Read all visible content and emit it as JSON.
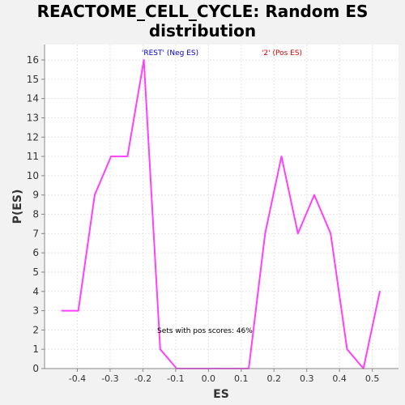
{
  "chart_data": {
    "type": "line",
    "title": "REACTOME_CELL_CYCLE: Random ES\ndistribution",
    "xlabel": "ES",
    "ylabel": "P(ES)",
    "xlim": [
      -0.5,
      0.58
    ],
    "ylim": [
      0,
      16.8
    ],
    "xticks": [
      "-0.4",
      "-0.3",
      "-0.2",
      "-0.1",
      "0.0",
      "0.1",
      "0.2",
      "0.3",
      "0.4",
      "0.5"
    ],
    "xtick_values": [
      -0.4,
      -0.3,
      -0.2,
      -0.1,
      0.0,
      0.1,
      0.2,
      0.3,
      0.4,
      0.5
    ],
    "yticks": [
      "0",
      "1",
      "2",
      "3",
      "4",
      "5",
      "6",
      "7",
      "8",
      "9",
      "10",
      "11",
      "12",
      "13",
      "14",
      "15",
      "16"
    ],
    "grid": true,
    "series": [
      {
        "color": "#ff40ff",
        "x": [
          -0.447,
          -0.397,
          -0.347,
          -0.297,
          -0.247,
          -0.197,
          -0.147,
          -0.097,
          -0.047,
          0.003,
          0.053,
          0.103,
          0.123,
          0.173,
          0.223,
          0.273,
          0.323,
          0.373,
          0.423,
          0.473,
          0.523
        ],
        "y": [
          3,
          3,
          9,
          11,
          11,
          16,
          1,
          0,
          0,
          0,
          0,
          0,
          0,
          7,
          11,
          7,
          9,
          7,
          1,
          0,
          4
        ]
      }
    ],
    "annotations": [
      {
        "text": "'REST' (Neg ES)",
        "color": "#0000cc"
      },
      {
        "text": "'2' (Pos ES)",
        "color": "#e00000"
      },
      {
        "text": "Sets with pos scores: 46%",
        "color": "#000000"
      }
    ]
  }
}
